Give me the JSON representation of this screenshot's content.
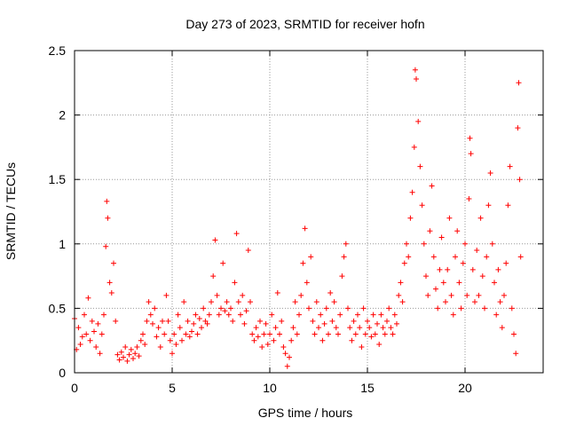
{
  "chart_data": {
    "type": "scatter",
    "title": "Day 273 of 2023, SRMTID for receiver hofn",
    "xlabel": "GPS time / hours",
    "ylabel": "SRMTID / TECUs",
    "xlim": [
      0,
      24
    ],
    "ylim": [
      0,
      2.5
    ],
    "xticks": [
      0,
      5,
      10,
      15,
      20
    ],
    "xtick_labels": [
      "0",
      "5",
      "10",
      "15",
      "20"
    ],
    "yticks": [
      0,
      0.5,
      1,
      1.5,
      2,
      2.5
    ],
    "ytick_labels": [
      "0",
      "0.5",
      "1",
      "1.5",
      "2",
      "2.5"
    ],
    "grid": true,
    "marker": "+",
    "marker_color": "#ff0000",
    "series": [
      {
        "name": "SRMTID",
        "points": [
          [
            0.0,
            0.42
          ],
          [
            0.1,
            0.18
          ],
          [
            0.2,
            0.35
          ],
          [
            0.3,
            0.22
          ],
          [
            0.4,
            0.28
          ],
          [
            0.5,
            0.45
          ],
          [
            0.6,
            0.3
          ],
          [
            0.7,
            0.58
          ],
          [
            0.8,
            0.25
          ],
          [
            0.9,
            0.4
          ],
          [
            1.0,
            0.32
          ],
          [
            1.1,
            0.2
          ],
          [
            1.2,
            0.38
          ],
          [
            1.3,
            0.15
          ],
          [
            1.4,
            0.3
          ],
          [
            1.5,
            0.45
          ],
          [
            1.6,
            0.98
          ],
          [
            1.65,
            1.33
          ],
          [
            1.7,
            1.2
          ],
          [
            1.8,
            0.7
          ],
          [
            1.9,
            0.62
          ],
          [
            2.0,
            0.85
          ],
          [
            2.1,
            0.4
          ],
          [
            2.2,
            0.14
          ],
          [
            2.3,
            0.1
          ],
          [
            2.4,
            0.16
          ],
          [
            2.5,
            0.12
          ],
          [
            2.6,
            0.2
          ],
          [
            2.7,
            0.09
          ],
          [
            2.8,
            0.14
          ],
          [
            2.9,
            0.18
          ],
          [
            3.0,
            0.11
          ],
          [
            3.1,
            0.15
          ],
          [
            3.2,
            0.2
          ],
          [
            3.3,
            0.13
          ],
          [
            3.4,
            0.25
          ],
          [
            3.5,
            0.3
          ],
          [
            3.6,
            0.22
          ],
          [
            3.7,
            0.4
          ],
          [
            3.8,
            0.55
          ],
          [
            3.9,
            0.45
          ],
          [
            4.0,
            0.38
          ],
          [
            4.1,
            0.5
          ],
          [
            4.2,
            0.28
          ],
          [
            4.3,
            0.35
          ],
          [
            4.4,
            0.2
          ],
          [
            4.5,
            0.4
          ],
          [
            4.6,
            0.3
          ],
          [
            4.7,
            0.6
          ],
          [
            4.8,
            0.4
          ],
          [
            4.9,
            0.25
          ],
          [
            5.0,
            0.15
          ],
          [
            5.1,
            0.3
          ],
          [
            5.2,
            0.22
          ],
          [
            5.3,
            0.45
          ],
          [
            5.4,
            0.35
          ],
          [
            5.5,
            0.25
          ],
          [
            5.6,
            0.55
          ],
          [
            5.7,
            0.3
          ],
          [
            5.8,
            0.4
          ],
          [
            5.9,
            0.28
          ],
          [
            6.0,
            0.32
          ],
          [
            6.1,
            0.38
          ],
          [
            6.2,
            0.45
          ],
          [
            6.3,
            0.3
          ],
          [
            6.4,
            0.42
          ],
          [
            6.5,
            0.35
          ],
          [
            6.6,
            0.5
          ],
          [
            6.7,
            0.4
          ],
          [
            6.8,
            0.38
          ],
          [
            6.9,
            0.45
          ],
          [
            7.0,
            0.55
          ],
          [
            7.1,
            0.75
          ],
          [
            7.2,
            1.03
          ],
          [
            7.3,
            0.6
          ],
          [
            7.4,
            0.45
          ],
          [
            7.5,
            0.5
          ],
          [
            7.6,
            0.85
          ],
          [
            7.7,
            0.48
          ],
          [
            7.8,
            0.55
          ],
          [
            7.9,
            0.45
          ],
          [
            8.0,
            0.5
          ],
          [
            8.1,
            0.4
          ],
          [
            8.2,
            0.7
          ],
          [
            8.3,
            1.08
          ],
          [
            8.4,
            0.55
          ],
          [
            8.5,
            0.45
          ],
          [
            8.6,
            0.6
          ],
          [
            8.7,
            0.38
          ],
          [
            8.8,
            0.48
          ],
          [
            8.9,
            0.95
          ],
          [
            9.0,
            0.55
          ],
          [
            9.1,
            0.3
          ],
          [
            9.2,
            0.25
          ],
          [
            9.3,
            0.35
          ],
          [
            9.4,
            0.28
          ],
          [
            9.5,
            0.4
          ],
          [
            9.6,
            0.2
          ],
          [
            9.7,
            0.3
          ],
          [
            9.8,
            0.38
          ],
          [
            9.9,
            0.22
          ],
          [
            10.0,
            0.3
          ],
          [
            10.1,
            0.45
          ],
          [
            10.2,
            0.25
          ],
          [
            10.3,
            0.35
          ],
          [
            10.4,
            0.62
          ],
          [
            10.5,
            0.3
          ],
          [
            10.6,
            0.4
          ],
          [
            10.7,
            0.2
          ],
          [
            10.8,
            0.15
          ],
          [
            10.9,
            0.05
          ],
          [
            11.0,
            0.12
          ],
          [
            11.1,
            0.25
          ],
          [
            11.2,
            0.35
          ],
          [
            11.3,
            0.55
          ],
          [
            11.4,
            0.3
          ],
          [
            11.5,
            0.45
          ],
          [
            11.6,
            0.6
          ],
          [
            11.7,
            0.85
          ],
          [
            11.8,
            1.12
          ],
          [
            11.9,
            0.7
          ],
          [
            12.0,
            0.5
          ],
          [
            12.1,
            0.9
          ],
          [
            12.2,
            0.4
          ],
          [
            12.3,
            0.3
          ],
          [
            12.4,
            0.55
          ],
          [
            12.5,
            0.35
          ],
          [
            12.6,
            0.45
          ],
          [
            12.7,
            0.25
          ],
          [
            12.8,
            0.38
          ],
          [
            12.9,
            0.5
          ],
          [
            13.0,
            0.3
          ],
          [
            13.1,
            0.62
          ],
          [
            13.2,
            0.4
          ],
          [
            13.3,
            0.55
          ],
          [
            13.4,
            0.35
          ],
          [
            13.5,
            0.3
          ],
          [
            13.6,
            0.45
          ],
          [
            13.7,
            0.75
          ],
          [
            13.8,
            0.9
          ],
          [
            13.9,
            1.0
          ],
          [
            14.0,
            0.5
          ],
          [
            14.1,
            0.35
          ],
          [
            14.2,
            0.25
          ],
          [
            14.3,
            0.4
          ],
          [
            14.4,
            0.3
          ],
          [
            14.5,
            0.45
          ],
          [
            14.6,
            0.35
          ],
          [
            14.7,
            0.2
          ],
          [
            14.8,
            0.5
          ],
          [
            14.9,
            0.3
          ],
          [
            15.0,
            0.4
          ],
          [
            15.1,
            0.35
          ],
          [
            15.2,
            0.28
          ],
          [
            15.3,
            0.45
          ],
          [
            15.4,
            0.3
          ],
          [
            15.5,
            0.38
          ],
          [
            15.6,
            0.22
          ],
          [
            15.7,
            0.45
          ],
          [
            15.8,
            0.35
          ],
          [
            15.9,
            0.3
          ],
          [
            16.0,
            0.4
          ],
          [
            16.1,
            0.5
          ],
          [
            16.2,
            0.35
          ],
          [
            16.3,
            0.3
          ],
          [
            16.4,
            0.45
          ],
          [
            16.5,
            0.38
          ],
          [
            16.6,
            0.6
          ],
          [
            16.7,
            0.7
          ],
          [
            16.8,
            0.55
          ],
          [
            16.9,
            0.85
          ],
          [
            17.0,
            1.0
          ],
          [
            17.1,
            0.9
          ],
          [
            17.2,
            1.2
          ],
          [
            17.3,
            1.4
          ],
          [
            17.4,
            1.75
          ],
          [
            17.45,
            2.35
          ],
          [
            17.5,
            2.28
          ],
          [
            17.6,
            1.95
          ],
          [
            17.7,
            1.6
          ],
          [
            17.8,
            1.3
          ],
          [
            17.9,
            1.0
          ],
          [
            18.0,
            0.75
          ],
          [
            18.1,
            0.6
          ],
          [
            18.2,
            1.1
          ],
          [
            18.3,
            1.45
          ],
          [
            18.4,
            0.9
          ],
          [
            18.5,
            0.65
          ],
          [
            18.6,
            0.5
          ],
          [
            18.7,
            0.8
          ],
          [
            18.8,
            1.05
          ],
          [
            18.9,
            0.7
          ],
          [
            19.0,
            0.55
          ],
          [
            19.1,
            0.8
          ],
          [
            19.2,
            1.2
          ],
          [
            19.3,
            0.6
          ],
          [
            19.4,
            0.45
          ],
          [
            19.5,
            0.9
          ],
          [
            19.6,
            1.1
          ],
          [
            19.7,
            0.7
          ],
          [
            19.8,
            0.5
          ],
          [
            19.9,
            0.85
          ],
          [
            20.0,
            1.0
          ],
          [
            20.1,
            0.6
          ],
          [
            20.2,
            1.35
          ],
          [
            20.25,
            1.82
          ],
          [
            20.3,
            1.7
          ],
          [
            20.4,
            0.8
          ],
          [
            20.5,
            0.55
          ],
          [
            20.6,
            0.95
          ],
          [
            20.7,
            0.6
          ],
          [
            20.8,
            1.2
          ],
          [
            20.9,
            0.75
          ],
          [
            21.0,
            0.5
          ],
          [
            21.1,
            0.9
          ],
          [
            21.2,
            1.3
          ],
          [
            21.3,
            1.55
          ],
          [
            21.4,
            1.0
          ],
          [
            21.5,
            0.7
          ],
          [
            21.6,
            0.45
          ],
          [
            21.7,
            0.8
          ],
          [
            21.8,
            0.55
          ],
          [
            21.9,
            0.35
          ],
          [
            22.0,
            0.6
          ],
          [
            22.1,
            0.85
          ],
          [
            22.2,
            1.3
          ],
          [
            22.3,
            1.6
          ],
          [
            22.4,
            0.5
          ],
          [
            22.5,
            0.3
          ],
          [
            22.6,
            0.15
          ],
          [
            22.7,
            1.9
          ],
          [
            22.75,
            2.25
          ],
          [
            22.8,
            1.5
          ],
          [
            22.85,
            0.9
          ]
        ]
      }
    ]
  }
}
